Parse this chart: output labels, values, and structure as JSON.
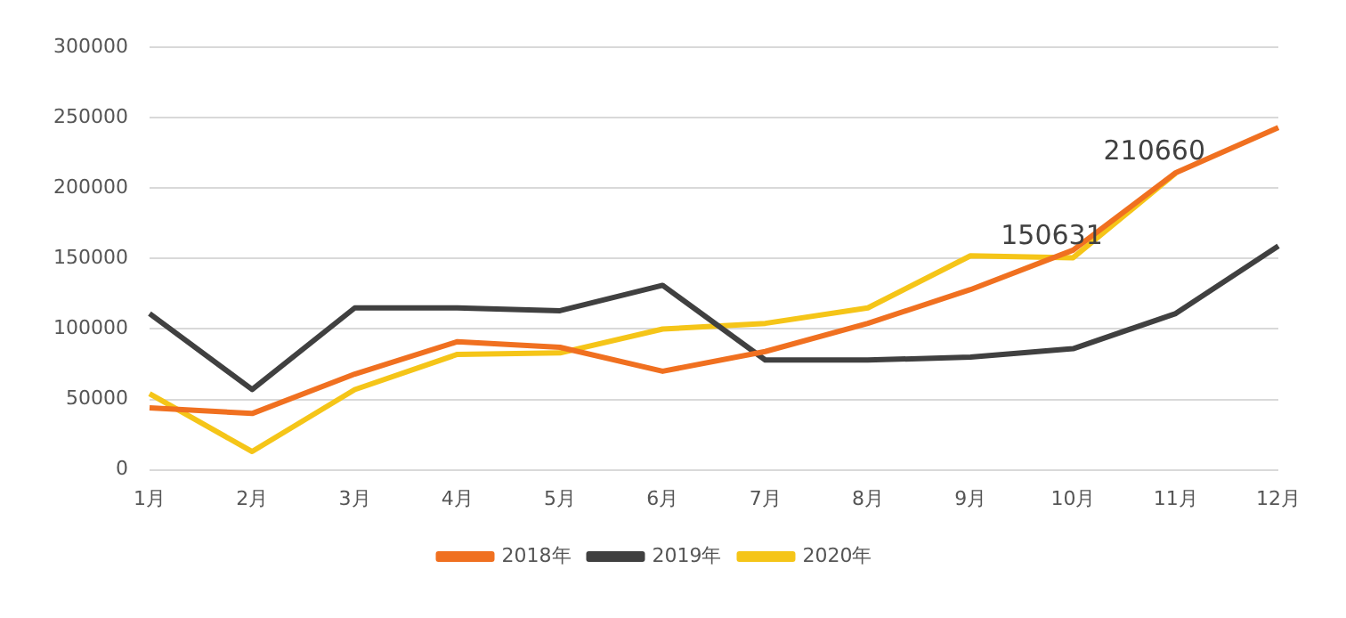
{
  "chart_data": {
    "type": "line",
    "categories": [
      "1月",
      "2月",
      "3月",
      "4月",
      "5月",
      "6月",
      "7月",
      "8月",
      "9月",
      "10月",
      "11月",
      "12月"
    ],
    "series": [
      {
        "name": "2018年",
        "color": "#f07020",
        "values": [
          44000,
          40000,
          68000,
          91000,
          87000,
          70000,
          84000,
          104000,
          128000,
          156000,
          211000,
          243000
        ]
      },
      {
        "name": "2019年",
        "color": "#404040",
        "values": [
          111000,
          57000,
          115000,
          115000,
          113000,
          131000,
          78000,
          78000,
          80000,
          86000,
          111000,
          159000
        ]
      },
      {
        "name": "2020年",
        "color": "#f5c518",
        "values": [
          54000,
          13000,
          57000,
          82000,
          83000,
          100000,
          104000,
          115000,
          152000,
          150631,
          210660,
          null
        ],
        "value_labels": [
          null,
          null,
          null,
          null,
          null,
          null,
          null,
          null,
          null,
          "150631",
          "210660",
          null
        ]
      }
    ],
    "ylim": [
      0,
      300000
    ],
    "yticks": [
      0,
      50000,
      100000,
      150000,
      200000,
      250000,
      300000
    ],
    "grid": "y",
    "legend": "bottom",
    "marker": "none",
    "line_style": "solid"
  }
}
